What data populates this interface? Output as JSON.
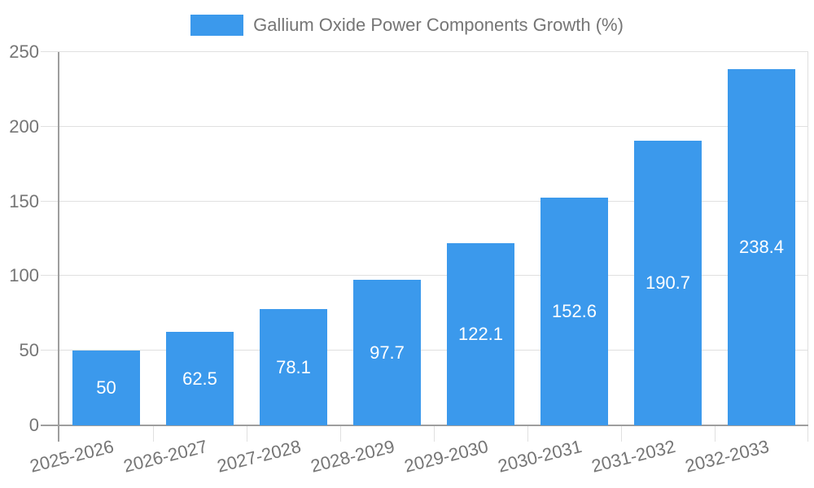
{
  "theme": {
    "background": "#ffffff",
    "bar_color": "#3b99ec",
    "bar_label_color": "#ffffff",
    "text_color": "#757575",
    "axis_line_color": "#9e9e9e",
    "grid_line_color": "#e0e0e0"
  },
  "legend": {
    "label": "Gallium Oxide Power Components Growth (%)"
  },
  "chart_data": {
    "type": "bar",
    "title": "Gallium Oxide Power Components Growth (%)",
    "categories": [
      "2025-2026",
      "2026-2027",
      "2027-2028",
      "2028-2029",
      "2029-2030",
      "2030-2031",
      "2031-2032",
      "2032-2033"
    ],
    "values": [
      50,
      62.5,
      78.1,
      97.7,
      122.1,
      152.6,
      190.7,
      238.4
    ],
    "value_labels": [
      "50",
      "62.5",
      "78.1",
      "97.7",
      "122.1",
      "152.6",
      "190.7",
      "238.4"
    ],
    "xlabel": "",
    "ylabel": "",
    "ylim": [
      0,
      250
    ],
    "y_ticks": [
      0,
      50,
      100,
      150,
      200,
      250
    ],
    "grid": true,
    "legend_position": "top"
  }
}
